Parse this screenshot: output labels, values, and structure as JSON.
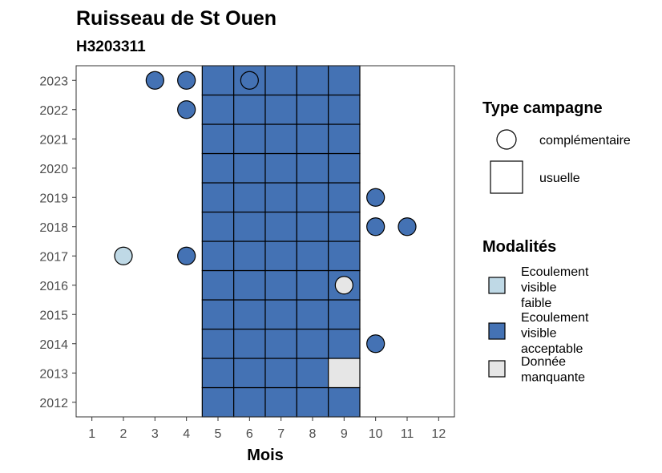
{
  "chart_data": {
    "type": "heatmap",
    "title": "Ruisseau de St Ouen",
    "subtitle": "H3203311",
    "xlabel": "Mois",
    "ylabel": "",
    "x_ticks": [
      "1",
      "2",
      "3",
      "4",
      "5",
      "6",
      "7",
      "8",
      "9",
      "10",
      "11",
      "12"
    ],
    "y_ticks": [
      "2012",
      "2013",
      "2014",
      "2015",
      "2016",
      "2017",
      "2018",
      "2019",
      "2020",
      "2021",
      "2022",
      "2023"
    ],
    "xlim": [
      0.5,
      12.5
    ],
    "ylim": [
      2011.5,
      2023.5
    ],
    "grid": false,
    "legend_position": "right",
    "colors": {
      "faible": "#bfd9e6",
      "acceptable": "#4472b4",
      "manquante": "#e6e6e6"
    },
    "legend_type": {
      "title": "Type campagne",
      "items": [
        {
          "label": "complémentaire",
          "shape": "circle"
        },
        {
          "label": "usuelle",
          "shape": "square"
        }
      ]
    },
    "legend_modalites": {
      "title": "Modalités",
      "items": [
        {
          "key": "faible",
          "lines": [
            "Ecoulement",
            "visible",
            "faible"
          ]
        },
        {
          "key": "acceptable",
          "lines": [
            "Ecoulement",
            "visible",
            "acceptable"
          ]
        },
        {
          "key": "manquante",
          "lines": [
            "Donnée",
            "manquante"
          ]
        }
      ]
    },
    "usuelle": [
      {
        "year": 2012,
        "month": 5,
        "m": "acceptable"
      },
      {
        "year": 2012,
        "month": 6,
        "m": "acceptable"
      },
      {
        "year": 2012,
        "month": 7,
        "m": "acceptable"
      },
      {
        "year": 2012,
        "month": 8,
        "m": "acceptable"
      },
      {
        "year": 2012,
        "month": 9,
        "m": "acceptable"
      },
      {
        "year": 2013,
        "month": 5,
        "m": "acceptable"
      },
      {
        "year": 2013,
        "month": 6,
        "m": "acceptable"
      },
      {
        "year": 2013,
        "month": 7,
        "m": "acceptable"
      },
      {
        "year": 2013,
        "month": 8,
        "m": "acceptable"
      },
      {
        "year": 2013,
        "month": 9,
        "m": "manquante"
      },
      {
        "year": 2014,
        "month": 5,
        "m": "acceptable"
      },
      {
        "year": 2014,
        "month": 6,
        "m": "acceptable"
      },
      {
        "year": 2014,
        "month": 7,
        "m": "acceptable"
      },
      {
        "year": 2014,
        "month": 8,
        "m": "acceptable"
      },
      {
        "year": 2014,
        "month": 9,
        "m": "acceptable"
      },
      {
        "year": 2015,
        "month": 5,
        "m": "acceptable"
      },
      {
        "year": 2015,
        "month": 6,
        "m": "acceptable"
      },
      {
        "year": 2015,
        "month": 7,
        "m": "acceptable"
      },
      {
        "year": 2015,
        "month": 8,
        "m": "acceptable"
      },
      {
        "year": 2015,
        "month": 9,
        "m": "acceptable"
      },
      {
        "year": 2016,
        "month": 5,
        "m": "acceptable"
      },
      {
        "year": 2016,
        "month": 6,
        "m": "acceptable"
      },
      {
        "year": 2016,
        "month": 7,
        "m": "acceptable"
      },
      {
        "year": 2016,
        "month": 8,
        "m": "acceptable"
      },
      {
        "year": 2016,
        "month": 9,
        "m": "acceptable"
      },
      {
        "year": 2017,
        "month": 5,
        "m": "acceptable"
      },
      {
        "year": 2017,
        "month": 6,
        "m": "acceptable"
      },
      {
        "year": 2017,
        "month": 7,
        "m": "acceptable"
      },
      {
        "year": 2017,
        "month": 8,
        "m": "acceptable"
      },
      {
        "year": 2017,
        "month": 9,
        "m": "acceptable"
      },
      {
        "year": 2018,
        "month": 5,
        "m": "acceptable"
      },
      {
        "year": 2018,
        "month": 6,
        "m": "acceptable"
      },
      {
        "year": 2018,
        "month": 7,
        "m": "acceptable"
      },
      {
        "year": 2018,
        "month": 8,
        "m": "acceptable"
      },
      {
        "year": 2018,
        "month": 9,
        "m": "acceptable"
      },
      {
        "year": 2019,
        "month": 5,
        "m": "acceptable"
      },
      {
        "year": 2019,
        "month": 6,
        "m": "acceptable"
      },
      {
        "year": 2019,
        "month": 7,
        "m": "acceptable"
      },
      {
        "year": 2019,
        "month": 8,
        "m": "acceptable"
      },
      {
        "year": 2019,
        "month": 9,
        "m": "acceptable"
      },
      {
        "year": 2020,
        "month": 5,
        "m": "acceptable"
      },
      {
        "year": 2020,
        "month": 6,
        "m": "acceptable"
      },
      {
        "year": 2020,
        "month": 7,
        "m": "acceptable"
      },
      {
        "year": 2020,
        "month": 8,
        "m": "acceptable"
      },
      {
        "year": 2020,
        "month": 9,
        "m": "acceptable"
      },
      {
        "year": 2021,
        "month": 5,
        "m": "acceptable"
      },
      {
        "year": 2021,
        "month": 6,
        "m": "acceptable"
      },
      {
        "year": 2021,
        "month": 7,
        "m": "acceptable"
      },
      {
        "year": 2021,
        "month": 8,
        "m": "acceptable"
      },
      {
        "year": 2021,
        "month": 9,
        "m": "acceptable"
      },
      {
        "year": 2022,
        "month": 5,
        "m": "acceptable"
      },
      {
        "year": 2022,
        "month": 6,
        "m": "acceptable"
      },
      {
        "year": 2022,
        "month": 7,
        "m": "acceptable"
      },
      {
        "year": 2022,
        "month": 8,
        "m": "acceptable"
      },
      {
        "year": 2022,
        "month": 9,
        "m": "acceptable"
      },
      {
        "year": 2023,
        "month": 5,
        "m": "acceptable"
      },
      {
        "year": 2023,
        "month": 6,
        "m": "acceptable"
      },
      {
        "year": 2023,
        "month": 7,
        "m": "acceptable"
      },
      {
        "year": 2023,
        "month": 8,
        "m": "acceptable"
      },
      {
        "year": 2023,
        "month": 9,
        "m": "acceptable"
      }
    ],
    "complementaire": [
      {
        "year": 2023,
        "month": 3,
        "m": "acceptable"
      },
      {
        "year": 2023,
        "month": 4,
        "m": "acceptable"
      },
      {
        "year": 2023,
        "month": 6,
        "m": "acceptable"
      },
      {
        "year": 2022,
        "month": 4,
        "m": "acceptable"
      },
      {
        "year": 2019,
        "month": 10,
        "m": "acceptable"
      },
      {
        "year": 2018,
        "month": 10,
        "m": "acceptable"
      },
      {
        "year": 2018,
        "month": 11,
        "m": "acceptable"
      },
      {
        "year": 2017,
        "month": 2,
        "m": "faible"
      },
      {
        "year": 2017,
        "month": 4,
        "m": "acceptable"
      },
      {
        "year": 2016,
        "month": 9,
        "m": "manquante"
      },
      {
        "year": 2014,
        "month": 10,
        "m": "acceptable"
      }
    ]
  }
}
